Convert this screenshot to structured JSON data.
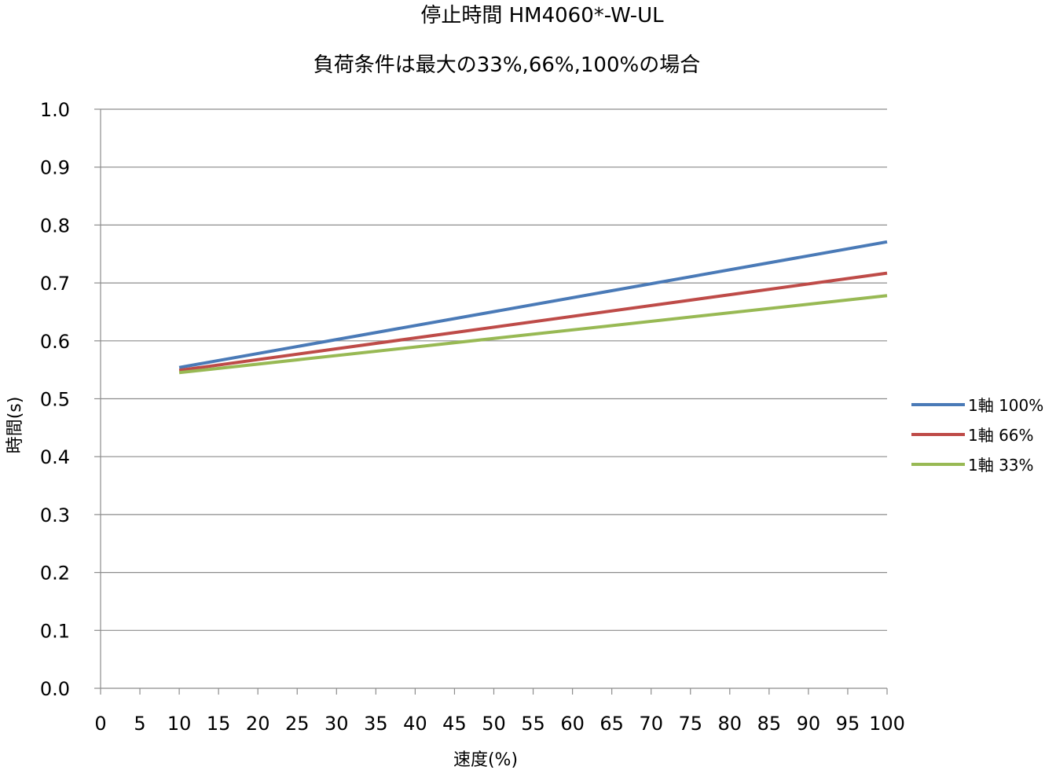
{
  "chart_data": {
    "type": "line",
    "title": "停止時間 HM4060*-W-UL",
    "subtitle": "負荷条件は最大の33%,66%,100%の場合",
    "xlabel": "速度(%)",
    "ylabel": "時間(s)",
    "xlim": [
      0,
      100
    ],
    "ylim": [
      0,
      1.0
    ],
    "x_ticks": [
      "0",
      "5",
      "10",
      "15",
      "20",
      "25",
      "30",
      "35",
      "40",
      "45",
      "50",
      "55",
      "60",
      "65",
      "70",
      "75",
      "80",
      "85",
      "90",
      "95",
      "100"
    ],
    "y_ticks": [
      "0.0",
      "0.1",
      "0.2",
      "0.3",
      "0.4",
      "0.5",
      "0.6",
      "0.7",
      "0.8",
      "0.9",
      "1.0"
    ],
    "grid": "horizontal",
    "legend_position": "right",
    "series": [
      {
        "name": "1軸 100%",
        "color": "#4a7ab7",
        "x": [
          10,
          100
        ],
        "y": [
          0.554,
          0.771
        ]
      },
      {
        "name": "1軸 66%",
        "color": "#be4b48",
        "x": [
          10,
          100
        ],
        "y": [
          0.549,
          0.717
        ]
      },
      {
        "name": "1軸 33%",
        "color": "#98b954",
        "x": [
          10,
          100
        ],
        "y": [
          0.545,
          0.678
        ]
      }
    ]
  }
}
